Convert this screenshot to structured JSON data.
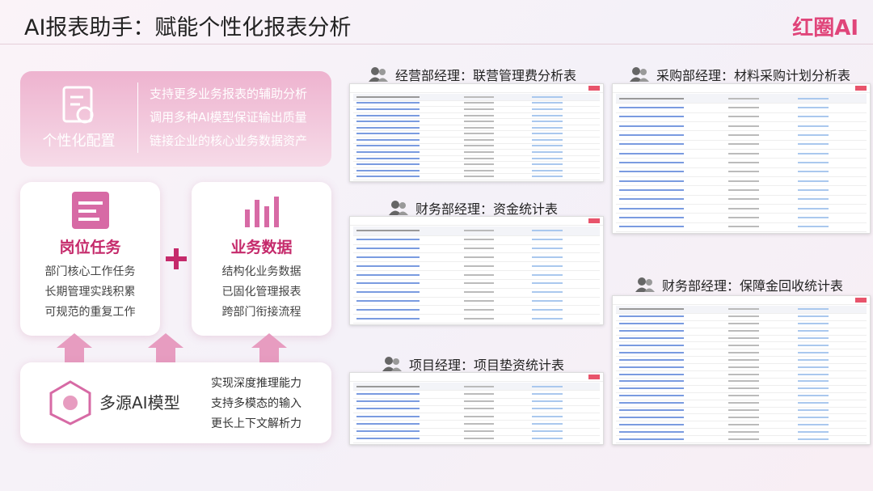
{
  "header": {
    "title": "AI报表助手：赋能个性化报表分析",
    "logo": "红圈AI"
  },
  "config": {
    "label": "个性化配置",
    "lines": [
      "支持更多业务报表的辅助分析",
      "调用多种AI模型保证输出质量",
      "链接企业的核心业务数据资产"
    ]
  },
  "job": {
    "title": "岗位任务",
    "lines": [
      "部门核心工作任务",
      "长期管理实践积累",
      "可规范的重复工作"
    ]
  },
  "data": {
    "title": "业务数据",
    "lines": [
      "结构化业务数据",
      "已固化管理报表",
      "跨部门衔接流程"
    ]
  },
  "model": {
    "title": "多源AI模型",
    "lines": [
      "实现深度推理能力",
      "支持多模态的输入",
      "更长上下文解析力"
    ]
  },
  "reports": [
    {
      "caption": "经营部经理：联营管理费分析表"
    },
    {
      "caption": "财务部经理：资金统计表"
    },
    {
      "caption": "项目经理：项目垫资统计表"
    },
    {
      "caption": "采购部经理：材料采购计划分析表"
    },
    {
      "caption": "财务部经理：保障金回收统计表"
    }
  ]
}
